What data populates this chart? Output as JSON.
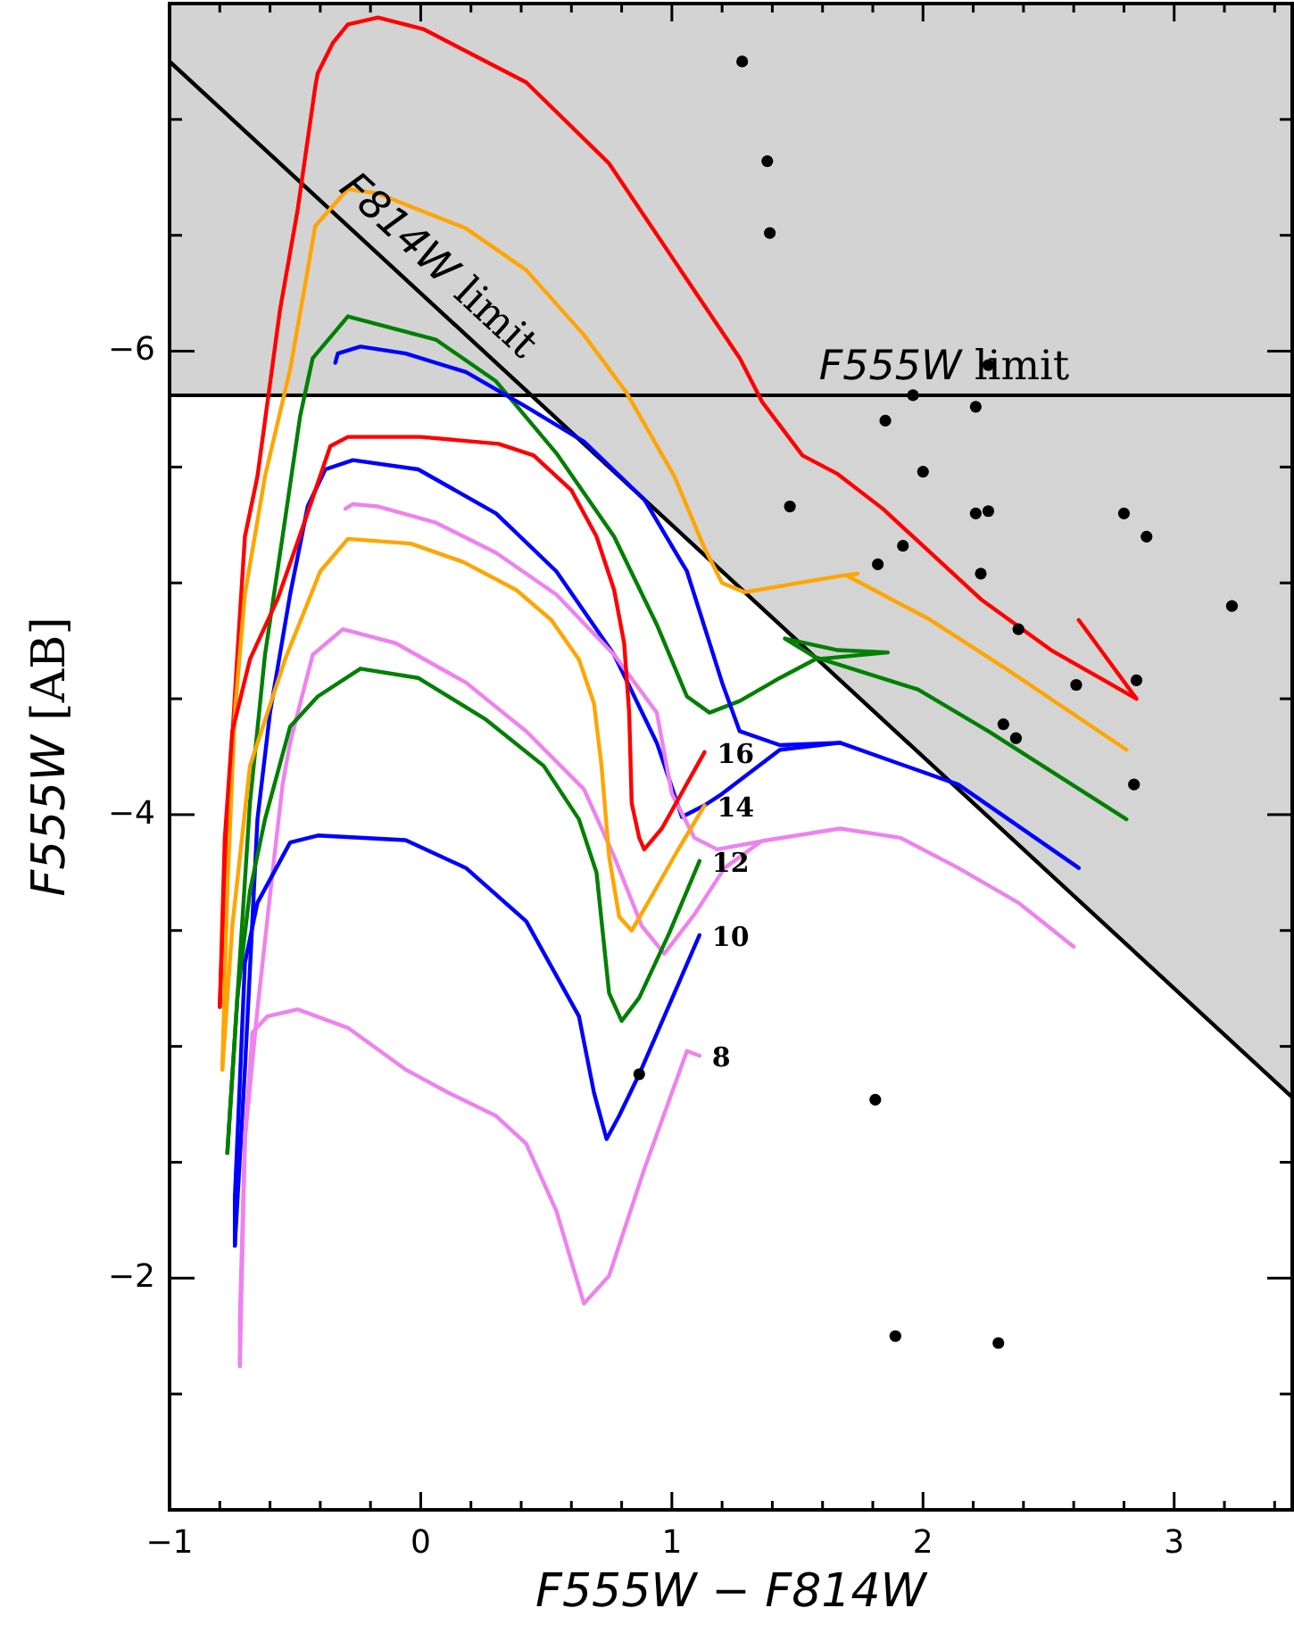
{
  "chart_data": {
    "type": "line",
    "xlabel": "F555W − F814W",
    "ylabel": "F555W [AB]",
    "xlim": [
      -1,
      3.47
    ],
    "ylim": [
      -1,
      -7.5
    ],
    "xticks": [
      {
        "value": -1,
        "label": "−1"
      },
      {
        "value": -0.8,
        "label": null
      },
      {
        "value": -0.6,
        "label": null
      },
      {
        "value": -0.4,
        "label": null
      },
      {
        "value": -0.2,
        "label": null
      },
      0,
      {
        "value": 0.2,
        "label": null
      },
      {
        "value": 0.4,
        "label": null
      },
      {
        "value": 0.6,
        "label": null
      },
      {
        "value": 0.8,
        "label": null
      },
      1,
      {
        "value": 1.2,
        "label": null
      },
      {
        "value": 1.4,
        "label": null
      },
      {
        "value": 1.6,
        "label": null
      },
      {
        "value": 1.8,
        "label": null
      },
      2,
      {
        "value": 2.2,
        "label": null
      },
      {
        "value": 2.4,
        "label": null
      },
      {
        "value": 2.6,
        "label": null
      },
      {
        "value": 2.8,
        "label": null
      },
      3,
      {
        "value": 3.2,
        "label": null
      },
      {
        "value": 3.4,
        "label": null
      }
    ],
    "yticks": [
      {
        "value": -7,
        "label": null
      },
      {
        "value": -6.5,
        "label": null
      },
      {
        "value": -6,
        "label": "−6"
      },
      {
        "value": -5.5,
        "label": null
      },
      {
        "value": -5,
        "label": null
      },
      {
        "value": -4.5,
        "label": null
      },
      {
        "value": -4,
        "label": "−4"
      },
      {
        "value": -3.5,
        "label": null
      },
      {
        "value": -3,
        "label": null
      },
      {
        "value": -2.5,
        "label": null
      },
      {
        "value": -2,
        "label": "−2"
      },
      {
        "value": -1.5,
        "label": null
      }
    ],
    "bands": [
      {
        "axis": "y",
        "from": -5.81,
        "to": -7.5,
        "color": "#d3d3d3"
      }
    ],
    "ref_lines": [
      {
        "axis": "y",
        "value": -5.81,
        "label": "F555W limit",
        "color": "#000000"
      }
    ],
    "annotations": [
      "F814W limit"
    ],
    "series": [
      {
        "type": "line",
        "color": "#000000",
        "x": [
          -1,
          0.44,
          3.47
        ],
        "values": [
          -7.25,
          -5.81,
          -2.78
        ],
        "lower": [
          -7.25,
          -5.81,
          -2.78
        ],
        "upper": [
          -7.25,
          -5.81,
          -5.81
        ]
      },
      {
        "color": "#ff0000",
        "x": [
          -0.8,
          -0.77,
          -0.73,
          -0.7,
          -0.65,
          -0.56,
          -0.49,
          -0.42,
          -0.41,
          -0.35,
          -0.29,
          -0.17,
          0.01,
          0.42,
          0.75,
          1.27,
          1.36,
          1.52,
          1.66,
          1.84,
          2.23,
          2.51,
          2.85,
          2.62
        ],
        "values": [
          -3.17,
          -3.98,
          -4.69,
          -5.2,
          -5.46,
          -6.18,
          -6.61,
          -7.14,
          -7.2,
          -7.33,
          -7.41,
          -7.44,
          -7.39,
          -7.16,
          -6.81,
          -5.97,
          -5.78,
          -5.55,
          -5.47,
          -5.32,
          -4.93,
          -4.71,
          -4.5,
          -4.84
        ]
      },
      {
        "color": "#ffa500",
        "x": [
          -0.79,
          -0.77,
          -0.74,
          -0.7,
          -0.62,
          -0.52,
          -0.45,
          -0.42,
          -0.29,
          -0.17,
          0.18,
          0.42,
          0.65,
          0.82,
          1.01,
          1.13,
          1.2,
          1.29,
          1.67,
          1.74,
          1.7,
          2.03,
          2.33,
          2.81
        ],
        "values": [
          -2.9,
          -3.67,
          -4.44,
          -4.95,
          -5.46,
          -5.92,
          -6.35,
          -6.54,
          -6.7,
          -6.68,
          -6.53,
          -6.35,
          -6.07,
          -5.82,
          -5.46,
          -5.15,
          -5.0,
          -4.96,
          -5.03,
          -5.04,
          -5.03,
          -4.84,
          -4.63,
          -4.28
        ]
      },
      {
        "color": "#008000",
        "x": [
          -0.77,
          -0.73,
          -0.68,
          -0.62,
          -0.55,
          -0.48,
          -0.43,
          -0.29,
          0.06,
          0.3,
          0.54,
          0.77,
          0.94,
          1.06,
          1.15,
          1.27,
          1.43,
          1.57,
          1.86,
          1.66,
          1.45,
          1.57,
          1.98,
          2.26,
          2.81
        ],
        "values": [
          -2.54,
          -3.21,
          -4.05,
          -4.69,
          -5.2,
          -5.72,
          -5.97,
          -6.15,
          -6.05,
          -5.87,
          -5.56,
          -5.2,
          -4.82,
          -4.51,
          -4.44,
          -4.49,
          -4.59,
          -4.67,
          -4.7,
          -4.71,
          -4.76,
          -4.68,
          -4.54,
          -4.36,
          -3.98
        ]
      },
      {
        "color": "#0000ff",
        "x": [
          -0.34,
          -0.33,
          -0.24,
          -0.06,
          0.18,
          0.42,
          0.65,
          0.89,
          1.06,
          1.2,
          1.27,
          1.43,
          1.67
        ],
        "values": [
          -5.95,
          -5.99,
          -6.02,
          -5.99,
          -5.91,
          -5.76,
          -5.61,
          -5.36,
          -5.05,
          -4.57,
          -4.36,
          -4.3,
          -4.31
        ]
      },
      {
        "color": "#0000ff",
        "x": [
          -0.74,
          -0.7,
          -0.65,
          -0.6,
          -0.52,
          -0.45,
          -0.38,
          -0.27,
          -0.01,
          0.3,
          0.54,
          0.77,
          0.94,
          1.04,
          1.13,
          1.2,
          1.43,
          1.67,
          2.14,
          2.62
        ],
        "values": [
          -2.14,
          -2.9,
          -3.98,
          -4.44,
          -4.95,
          -5.33,
          -5.49,
          -5.53,
          -5.49,
          -5.3,
          -5.05,
          -4.69,
          -4.31,
          -3.99,
          -4.04,
          -4.09,
          -4.28,
          -4.31,
          -4.13,
          -3.77
        ]
      },
      {
        "color": "#ee82ee",
        "x": [
          -0.3,
          -0.27,
          -0.17,
          0.06,
          0.3,
          0.54,
          0.77,
          0.94,
          1.0,
          1.09,
          1.18,
          1.38,
          1.67,
          1.91,
          2.14,
          2.38,
          2.6
        ],
        "values": [
          -5.32,
          -5.34,
          -5.33,
          -5.26,
          -5.13,
          -4.95,
          -4.69,
          -4.44,
          -4.09,
          -3.9,
          -3.85,
          -3.89,
          -3.94,
          -3.9,
          -3.77,
          -3.62,
          -3.43
        ]
      },
      {
        "color": "#ee82ee",
        "x": [
          -0.72,
          -0.72,
          -0.7,
          -0.65,
          -0.59,
          -0.55,
          -0.52,
          -0.43,
          -0.31,
          -0.1,
          0.18,
          0.42,
          0.65,
          0.77,
          0.88,
          0.97,
          1.09,
          1.21,
          1.35
        ],
        "values": [
          -1.62,
          -1.83,
          -2.6,
          -3.16,
          -3.75,
          -4.13,
          -4.31,
          -4.69,
          -4.8,
          -4.74,
          -4.57,
          -4.36,
          -4.11,
          -3.82,
          -3.52,
          -3.4,
          -3.57,
          -3.77,
          -3.88
        ]
      },
      {
        "name": "16",
        "color": "#ff0000",
        "x": [
          -0.8,
          -0.78,
          -0.75,
          -0.68,
          -0.57,
          -0.47,
          -0.36,
          -0.29,
          0,
          0.31,
          0.45,
          0.6,
          0.7,
          0.77,
          0.81,
          0.83,
          0.84,
          0.87,
          0.89,
          0.96,
          1.13
        ],
        "values": [
          -3.17,
          -3.9,
          -4.36,
          -4.67,
          -4.93,
          -5.24,
          -5.59,
          -5.63,
          -5.63,
          -5.6,
          -5.55,
          -5.4,
          -5.2,
          -4.97,
          -4.74,
          -4.44,
          -4.05,
          -3.9,
          -3.85,
          -3.94,
          -4.27
        ]
      },
      {
        "name": "14",
        "color": "#ffa500",
        "x": [
          -0.79,
          -0.75,
          -0.68,
          -0.54,
          -0.4,
          -0.29,
          -0.04,
          0.17,
          0.38,
          0.52,
          0.63,
          0.69,
          0.72,
          0.75,
          0.79,
          0.84,
          0.91,
          1.02,
          1.13
        ],
        "values": [
          -2.9,
          -3.52,
          -4.21,
          -4.67,
          -5.05,
          -5.19,
          -5.17,
          -5.09,
          -4.97,
          -4.84,
          -4.67,
          -4.48,
          -4.21,
          -3.82,
          -3.56,
          -3.5,
          -3.63,
          -3.84,
          -4.04
        ]
      },
      {
        "name": "12",
        "color": "#008000",
        "x": [
          -0.77,
          -0.73,
          -0.68,
          -0.62,
          -0.52,
          -0.41,
          -0.24,
          -0.01,
          0.26,
          0.49,
          0.63,
          0.7,
          0.75,
          0.8,
          0.87,
          0.99,
          1.11
        ],
        "values": [
          -2.54,
          -3.21,
          -3.67,
          -3.98,
          -4.38,
          -4.51,
          -4.63,
          -4.59,
          -4.41,
          -4.21,
          -3.98,
          -3.75,
          -3.23,
          -3.11,
          -3.21,
          -3.49,
          -3.8
        ]
      },
      {
        "name": "10",
        "color": "#0000ff",
        "x": [
          -0.74,
          -0.74,
          -0.72,
          -0.7,
          -0.65,
          -0.52,
          -0.41,
          -0.06,
          0.18,
          0.42,
          0.63,
          0.69,
          0.74,
          0.79,
          0.87,
          1.11
        ],
        "values": [
          -2.14,
          -2.35,
          -2.85,
          -3.36,
          -3.62,
          -3.88,
          -3.91,
          -3.89,
          -3.77,
          -3.54,
          -3.13,
          -2.8,
          -2.6,
          -2.7,
          -2.88,
          -3.48
        ]
      },
      {
        "name": "8",
        "color": "#ee82ee",
        "x": [
          -0.72,
          -0.7,
          -0.67,
          -0.61,
          -0.49,
          -0.29,
          -0.06,
          0.11,
          0.3,
          0.42,
          0.54,
          0.65,
          0.75,
          0.89,
          1.06,
          1.11
        ],
        "values": [
          -1.62,
          -2.6,
          -3.06,
          -3.13,
          -3.16,
          -3.08,
          -2.9,
          -2.8,
          -2.7,
          -2.58,
          -2.29,
          -1.89,
          -2.01,
          -2.47,
          -2.98,
          -2.96
        ]
      },
      {
        "type": "scatter",
        "color": "#000000",
        "x": [
          1.28,
          1.38,
          1.39,
          2.26,
          1.96,
          2.21,
          1.85,
          2.0,
          1.47,
          2.21,
          2.26,
          2.8,
          2.89,
          1.92,
          1.82,
          2.23,
          3.23,
          2.38,
          2.61,
          2.85,
          2.32,
          2.37,
          2.84,
          1.81,
          1.89,
          2.3,
          0.87
        ],
        "values": [
          -7.25,
          -6.82,
          -6.51,
          -5.94,
          -5.81,
          -5.76,
          -5.7,
          -5.48,
          -5.33,
          -5.3,
          -5.31,
          -5.3,
          -5.2,
          -5.16,
          -5.08,
          -5.04,
          -4.9,
          -4.8,
          -4.56,
          -4.58,
          -4.39,
          -4.33,
          -4.13,
          -2.77,
          -1.75,
          -1.72,
          -2.88
        ]
      }
    ]
  }
}
